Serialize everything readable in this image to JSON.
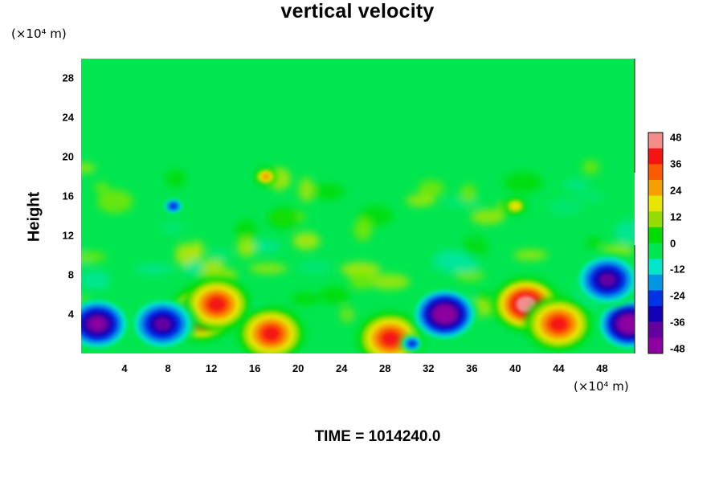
{
  "chart_data": {
    "type": "heatmap",
    "title": "vertical velocity",
    "ylabel": "Height",
    "xlabel": "",
    "y_unit": "(×10⁴ m)",
    "x_unit": "(×10⁴ m)",
    "xlim": [
      0,
      51
    ],
    "ylim": [
      0,
      30
    ],
    "x_ticks": [
      "4",
      "8",
      "12",
      "16",
      "20",
      "24",
      "28",
      "32",
      "36",
      "40",
      "44",
      "48"
    ],
    "y_ticks": [
      "4",
      "8",
      "12",
      "16",
      "20",
      "24",
      "28"
    ],
    "colorbar": {
      "min": -48,
      "max": 48,
      "step": 6,
      "tick_labels": [
        "48",
        "36",
        "24",
        "12",
        "0",
        "-12",
        "-24",
        "-36",
        "-48"
      ],
      "colors": [
        "#f58c8c",
        "#f51414",
        "#fa5a00",
        "#f5a000",
        "#e6e600",
        "#96dc00",
        "#00dc00",
        "#00e650",
        "#00e6c8",
        "#0096e6",
        "#0032e6",
        "#1400b4",
        "#6400a0",
        "#8c00a0"
      ]
    },
    "background_value": 0,
    "features": [
      {
        "x": 11,
        "y": 4,
        "value": 48
      },
      {
        "x": 12.5,
        "y": 5,
        "value": 36
      },
      {
        "x": 17.5,
        "y": 2,
        "value": 36
      },
      {
        "x": 28.5,
        "y": 1.5,
        "value": 36
      },
      {
        "x": 33.5,
        "y": 4,
        "value": -48
      },
      {
        "x": 41,
        "y": 5,
        "value": 48
      },
      {
        "x": 44,
        "y": 3,
        "value": 36
      },
      {
        "x": 7.5,
        "y": 3,
        "value": -36
      },
      {
        "x": 1.5,
        "y": 3,
        "value": -42
      },
      {
        "x": 50.5,
        "y": 3,
        "value": -48
      },
      {
        "x": 48.5,
        "y": 7.5,
        "value": -36
      },
      {
        "x": 30.5,
        "y": 1,
        "value": -24
      },
      {
        "x": 17,
        "y": 18,
        "value": 24
      },
      {
        "x": 40,
        "y": 15,
        "value": 18
      },
      {
        "x": 8.5,
        "y": 15,
        "value": -24
      }
    ],
    "grid": false
  },
  "footer": {
    "label": "TIME = 1014240.0"
  }
}
